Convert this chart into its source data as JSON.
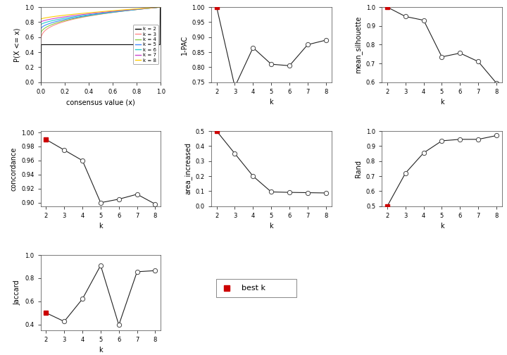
{
  "k_values": [
    2,
    3,
    4,
    5,
    6,
    7,
    8
  ],
  "pac_1minus": [
    1.0,
    0.735,
    0.865,
    0.81,
    0.805,
    0.875,
    0.89
  ],
  "mean_silhouette": [
    1.0,
    0.95,
    0.93,
    0.735,
    0.755,
    0.71,
    0.595
  ],
  "concordance": [
    0.99,
    0.975,
    0.96,
    0.9,
    0.905,
    0.912,
    0.898
  ],
  "area_increased": [
    0.5,
    0.35,
    0.2,
    0.095,
    0.092,
    0.09,
    0.088
  ],
  "rand": [
    0.5,
    0.72,
    0.855,
    0.935,
    0.945,
    0.945,
    0.97
  ],
  "jaccard": [
    0.5,
    0.425,
    0.62,
    0.91,
    0.395,
    0.855,
    0.865
  ],
  "best_k_index": 0,
  "ecdf_colors": [
    "#000000",
    "#ff8888",
    "#88cc44",
    "#4488ff",
    "#22cccc",
    "#cc44cc",
    "#ffcc00"
  ],
  "ecdf_labels": [
    "k = 2",
    "k = 3",
    "k = 4",
    "k = 5",
    "k = 6",
    "k = 7",
    "k = 8"
  ],
  "red_dot_color": "#cc0000",
  "open_dot_color": "#ffffff",
  "dot_edge_color": "#444444",
  "line_color": "#222222",
  "background_color": "#ffffff",
  "axis_label_fontsize": 7,
  "tick_fontsize": 6,
  "title_fontsize": 8
}
